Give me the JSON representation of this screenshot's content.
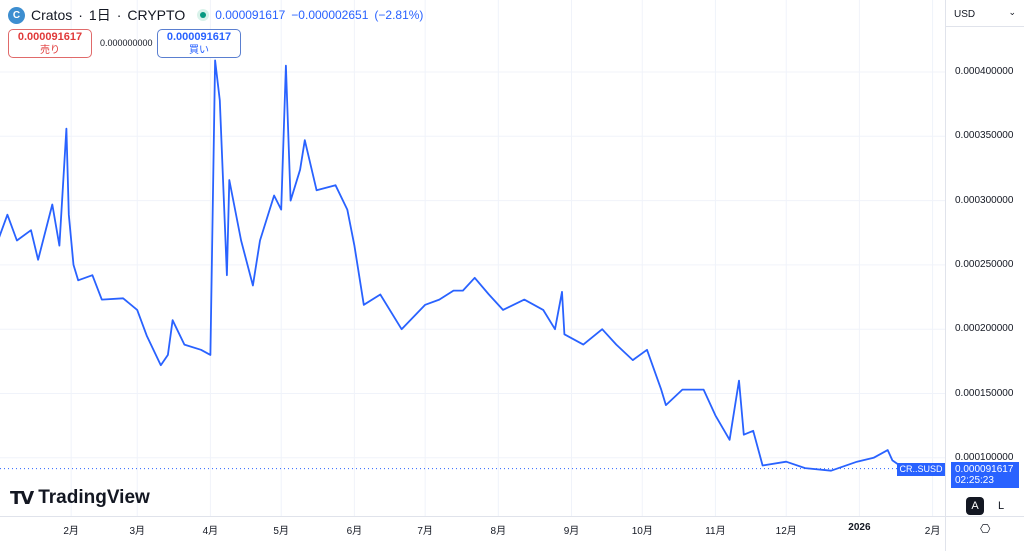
{
  "header": {
    "symbol": "Cratos",
    "interval": "1日",
    "exchange": "CRYPTO",
    "sep": "·",
    "last": "0.000091617",
    "change": "−0.000002651",
    "change_pct": "(−2.81%)",
    "logo_letter": "C",
    "status_color": "#089981"
  },
  "trade": {
    "sell_price": "0.000091617",
    "sell_label": "売り",
    "spread": "0.000000000",
    "buy_price": "0.000091617",
    "buy_label": "買い"
  },
  "currency": {
    "label": "USD",
    "icon": "chevron-down-icon"
  },
  "price_tag": {
    "symbol": "CR..SUSD",
    "price": "0.000091617",
    "countdown": "02:25:23"
  },
  "scale_buttons": {
    "auto": "A",
    "log": "L"
  },
  "brand": {
    "name": "TradingView",
    "mark": "17"
  },
  "colors": {
    "line": "#2962ff",
    "accent": "#2962ff",
    "sell": "#e03a3a"
  },
  "chart_data": {
    "type": "line",
    "y_ticks": [
      0.0001,
      0.00015,
      0.0002,
      0.00025,
      0.0003,
      0.00035,
      0.0004
    ],
    "y_tick_labels": [
      "0.000100000",
      "0.000150000",
      "0.000200000",
      "0.000250000",
      "0.000300000",
      "0.000350000",
      "0.000400000"
    ],
    "x_tick_labels": [
      {
        "label": "2月",
        "date": "2025-02-01"
      },
      {
        "label": "3月",
        "date": "2025-03-01"
      },
      {
        "label": "4月",
        "date": "2025-04-01"
      },
      {
        "label": "5月",
        "date": "2025-05-01"
      },
      {
        "label": "6月",
        "date": "2025-06-01"
      },
      {
        "label": "7月",
        "date": "2025-07-01"
      },
      {
        "label": "8月",
        "date": "2025-08-01"
      },
      {
        "label": "9月",
        "date": "2025-09-01"
      },
      {
        "label": "10月",
        "date": "2025-10-01"
      },
      {
        "label": "11月",
        "date": "2025-11-01"
      },
      {
        "label": "12月",
        "date": "2025-12-01"
      },
      {
        "label": "2026",
        "date": "2026-01-01"
      },
      {
        "label": "2月",
        "date": "2026-02-01"
      }
    ],
    "grid": true,
    "last_price": 9.1617e-05,
    "series": [
      {
        "points": [
          [
            "2025-01-01",
            0.000269
          ],
          [
            "2025-01-05",
            0.000289
          ],
          [
            "2025-01-09",
            0.000269
          ],
          [
            "2025-01-15",
            0.000277
          ],
          [
            "2025-01-18",
            0.000254
          ],
          [
            "2025-01-24",
            0.000297
          ],
          [
            "2025-01-27",
            0.000265
          ],
          [
            "2025-01-30",
            0.000356
          ],
          [
            "2025-01-31",
            0.000289
          ],
          [
            "2025-02-02",
            0.00025
          ],
          [
            "2025-02-04",
            0.000238
          ],
          [
            "2025-02-10",
            0.000242
          ],
          [
            "2025-02-14",
            0.000223
          ],
          [
            "2025-02-23",
            0.000224
          ],
          [
            "2025-03-01",
            0.000215
          ],
          [
            "2025-03-05",
            0.000195
          ],
          [
            "2025-03-11",
            0.000172
          ],
          [
            "2025-03-14",
            0.00018
          ],
          [
            "2025-03-16",
            0.000207
          ],
          [
            "2025-03-21",
            0.000188
          ],
          [
            "2025-03-28",
            0.000184
          ],
          [
            "2025-04-01",
            0.00018
          ],
          [
            "2025-04-03",
            0.000409
          ],
          [
            "2025-04-05",
            0.000378
          ],
          [
            "2025-04-08",
            0.000242
          ],
          [
            "2025-04-09",
            0.000316
          ],
          [
            "2025-04-14",
            0.000269
          ],
          [
            "2025-04-19",
            0.000234
          ],
          [
            "2025-04-22",
            0.000269
          ],
          [
            "2025-04-28",
            0.000304
          ],
          [
            "2025-05-01",
            0.000293
          ],
          [
            "2025-05-03",
            0.000405
          ],
          [
            "2025-05-05",
            0.0003
          ],
          [
            "2025-05-09",
            0.000324
          ],
          [
            "2025-05-11",
            0.000347
          ],
          [
            "2025-05-16",
            0.000308
          ],
          [
            "2025-05-24",
            0.000312
          ],
          [
            "2025-05-29",
            0.000293
          ],
          [
            "2025-06-01",
            0.000265
          ],
          [
            "2025-06-05",
            0.000219
          ],
          [
            "2025-06-12",
            0.000227
          ],
          [
            "2025-06-21",
            0.0002
          ],
          [
            "2025-07-01",
            0.000219
          ],
          [
            "2025-07-07",
            0.000223
          ],
          [
            "2025-07-13",
            0.00023
          ],
          [
            "2025-07-17",
            0.00023
          ],
          [
            "2025-07-22",
            0.00024
          ],
          [
            "2025-07-28",
            0.000227
          ],
          [
            "2025-08-03",
            0.000215
          ],
          [
            "2025-08-12",
            0.000223
          ],
          [
            "2025-08-20",
            0.000215
          ],
          [
            "2025-08-25",
            0.0002
          ],
          [
            "2025-08-28",
            0.000229
          ],
          [
            "2025-08-29",
            0.000196
          ],
          [
            "2025-09-06",
            0.000188
          ],
          [
            "2025-09-14",
            0.0002
          ],
          [
            "2025-09-20",
            0.000188
          ],
          [
            "2025-09-27",
            0.000176
          ],
          [
            "2025-10-03",
            0.000184
          ],
          [
            "2025-10-09",
            0.000153
          ],
          [
            "2025-10-11",
            0.000141
          ],
          [
            "2025-10-18",
            0.000153
          ],
          [
            "2025-10-27",
            0.000153
          ],
          [
            "2025-11-01",
            0.000133
          ],
          [
            "2025-11-07",
            0.000114
          ],
          [
            "2025-11-11",
            0.00016
          ],
          [
            "2025-11-13",
            0.000118
          ],
          [
            "2025-11-17",
            0.000121
          ],
          [
            "2025-11-21",
            9.4e-05
          ],
          [
            "2025-12-01",
            9.7e-05
          ],
          [
            "2025-12-09",
            9.2e-05
          ],
          [
            "2025-12-20",
            9e-05
          ],
          [
            "2025-12-31",
            9.7e-05
          ],
          [
            "2026-01-07",
            0.0001
          ],
          [
            "2026-01-13",
            0.000106
          ],
          [
            "2026-01-15",
            9.8e-05
          ],
          [
            "2026-01-20",
            9.16e-05
          ]
        ]
      }
    ]
  }
}
